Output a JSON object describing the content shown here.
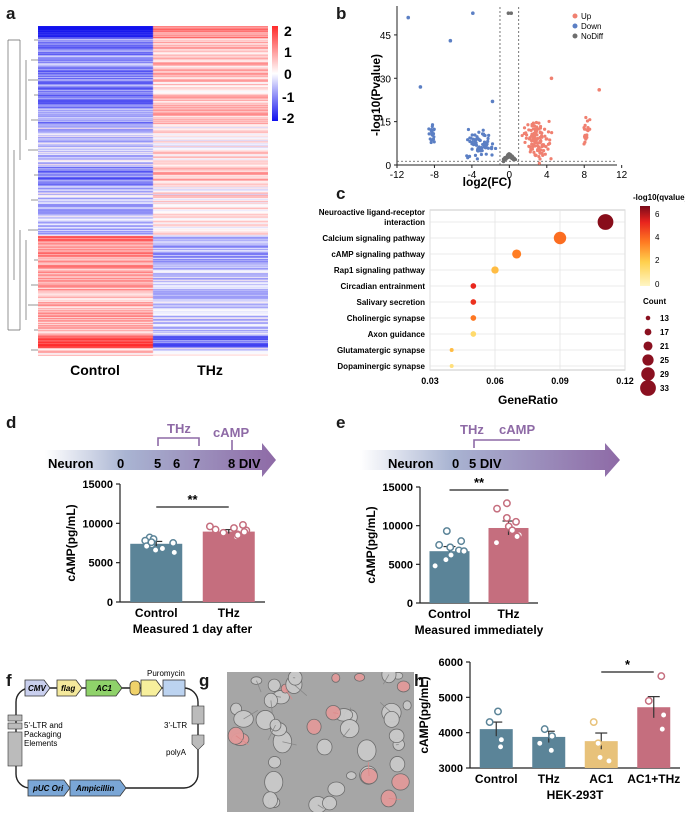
{
  "panel_letters": {
    "a": "a",
    "b": "b",
    "c": "c",
    "d": "d",
    "e": "e",
    "f": "f",
    "g": "g",
    "h": "h"
  },
  "heatmap": {
    "columns": [
      "Control",
      "THz"
    ],
    "colorbar": {
      "ticks": [
        "2",
        "1",
        "0",
        "-1",
        "-2"
      ],
      "colors": {
        "high": "#ff2a2a",
        "mid": "#ffffff",
        "low": "#1010ee"
      }
    }
  },
  "chart_data": [
    {
      "panel": "b",
      "type": "scatter",
      "title": "",
      "xlabel": "log2(FC)",
      "ylabel": "-log10(Pvalue)",
      "xlim": [
        -12,
        11.5
      ],
      "ylim": [
        0,
        55
      ],
      "xticks": [
        "-12",
        "-8",
        "-4",
        "0",
        "4",
        "8",
        "12"
      ],
      "yticks": [
        "0",
        "15",
        "30",
        "45"
      ],
      "legend": [
        {
          "name": "Up",
          "color": "#f08070"
        },
        {
          "name": "Down",
          "color": "#5b7fc4"
        },
        {
          "name": "NoDiff",
          "color": "#6e6e6e"
        }
      ],
      "threshold_lines": {
        "x": [
          -1,
          1
        ],
        "y": 1.3
      },
      "outliers": [
        {
          "group": "Down",
          "x": -10.8,
          "y": 51
        },
        {
          "group": "Down",
          "x": -3.9,
          "y": 52.5
        },
        {
          "group": "NoDiff",
          "x": -0.1,
          "y": 52.5
        },
        {
          "group": "NoDiff",
          "x": 0.2,
          "y": 52.5
        },
        {
          "group": "Down",
          "x": -6.3,
          "y": 43
        },
        {
          "group": "Down",
          "x": -9.5,
          "y": 27
        },
        {
          "group": "Up",
          "x": 9.6,
          "y": 26
        },
        {
          "group": "Up",
          "x": 4.5,
          "y": 30
        },
        {
          "group": "Down",
          "x": -1.8,
          "y": 22
        }
      ],
      "clusters": [
        {
          "group": "Down",
          "cx": -8.3,
          "cy": 11,
          "spread_x": 0.5,
          "spread_y": 5,
          "n": 18
        },
        {
          "group": "Down",
          "cx": -3.0,
          "cy": 7,
          "spread_x": 1.6,
          "spread_y": 6,
          "n": 70
        },
        {
          "group": "Up",
          "cx": 3.0,
          "cy": 8,
          "spread_x": 1.8,
          "spread_y": 8,
          "n": 110
        },
        {
          "group": "Up",
          "cx": 8.3,
          "cy": 12,
          "spread_x": 0.5,
          "spread_y": 6,
          "n": 18
        },
        {
          "group": "NoDiff",
          "cx": 0,
          "cy": 2,
          "spread_x": 0.8,
          "spread_y": 2.5,
          "n": 90
        }
      ]
    },
    {
      "panel": "c",
      "type": "scatter",
      "xlabel": "GeneRatio",
      "xlim": [
        0.03,
        0.12
      ],
      "xticks": [
        "0.03",
        "0.06",
        "0.09",
        "0.12"
      ],
      "categories": [
        "Neuroactive ligand-receptor interaction",
        "Calcium signaling pathway",
        "cAMP signaling pathway",
        "Rap1 signaling pathway",
        "Circadian entrainment",
        "Salivary secretion",
        "Cholinergic synapse",
        "Axon guidance",
        "Glutamatergic synapse",
        "Dopaminergic synapse"
      ],
      "category_lines": [
        [
          "Neuroactive ligand-receptor",
          "interaction"
        ],
        [
          "Calcium signaling pathway"
        ],
        [
          "cAMP signaling pathway"
        ],
        [
          "Rap1 signaling pathway"
        ],
        [
          "Circadian entrainment"
        ],
        [
          "Salivary secretion"
        ],
        [
          "Cholinergic synapse"
        ],
        [
          "Axon guidance"
        ],
        [
          "Glutamatergic synapse"
        ],
        [
          "Dopaminergic synapse"
        ]
      ],
      "gene_ratio": [
        0.111,
        0.09,
        0.07,
        0.06,
        0.05,
        0.05,
        0.05,
        0.05,
        0.04,
        0.04
      ],
      "count": [
        33,
        27,
        21,
        18,
        15,
        15,
        15,
        15,
        12,
        12
      ],
      "neg_log10_qvalue": [
        6.3,
        3.5,
        3.2,
        2.0,
        4.8,
        4.6,
        3.3,
        1.2,
        2.0,
        1.0
      ],
      "color_legend": {
        "title": "-log10(qvalue)",
        "ticks": [
          "6",
          "4",
          "2",
          "0"
        ],
        "min": 0,
        "max": 6.5,
        "colors": [
          "#fff6c4",
          "#ffd04d",
          "#ff7a22",
          "#e8231e",
          "#7a0a1a"
        ]
      },
      "size_legend": {
        "title": "Count",
        "values": [
          "13",
          "17",
          "21",
          "25",
          "29",
          "33"
        ]
      }
    },
    {
      "panel": "d",
      "type": "bar",
      "categories": [
        "Control",
        "THz"
      ],
      "values": [
        7400,
        8950
      ],
      "errors": [
        300,
        250
      ],
      "colors": [
        "#5b8498",
        "#c56e7e"
      ],
      "ylabel": "cAMP(pg/mL)",
      "ylim": [
        0,
        15000
      ],
      "yticks": [
        "0",
        "5000",
        "10000",
        "15000"
      ],
      "significance": "**",
      "xlabel": "Measured 1 day after",
      "points": [
        [
          8200,
          7800,
          7500,
          7300,
          6800,
          7100,
          6300,
          8000,
          7600,
          6600
        ],
        [
          9100,
          8600,
          8800,
          9400,
          8300,
          9600,
          8900,
          8500,
          9800,
          9200
        ]
      ],
      "timeline": {
        "start_label": "Neuron",
        "ticks": [
          "0",
          "5",
          "6",
          "7",
          "8 DIV"
        ],
        "bracket_label": "THz",
        "marker_label": "cAMP"
      }
    },
    {
      "panel": "e",
      "type": "bar",
      "categories": [
        "Control",
        "THz"
      ],
      "values": [
        6700,
        9700
      ],
      "errors": [
        600,
        900
      ],
      "colors": [
        "#5b8498",
        "#c56e7e"
      ],
      "ylabel": "cAMP(pg/mL)",
      "ylim": [
        0,
        15000
      ],
      "yticks": [
        "0",
        "5000",
        "10000",
        "15000"
      ],
      "significance": "**",
      "xlabel": "Measured immediately",
      "points": [
        [
          9300,
          8000,
          7200,
          6800,
          6200,
          5600,
          4800,
          7500,
          6700
        ],
        [
          12900,
          12200,
          10500,
          9900,
          8800,
          7800,
          9400,
          8600,
          11000
        ]
      ],
      "timeline": {
        "start_label": "Neuron",
        "ticks": [
          "0",
          "5 DIV"
        ],
        "bracket_label": "THz",
        "marker_label": "cAMP"
      }
    },
    {
      "panel": "h",
      "type": "bar",
      "categories": [
        "Control",
        "THz",
        "AC1",
        "AC1+THz"
      ],
      "values": [
        4100,
        3880,
        3760,
        4720
      ],
      "errors": [
        200,
        160,
        230,
        300
      ],
      "colors": [
        "#5b8498",
        "#5b8498",
        "#e8c27a",
        "#c56e7e"
      ],
      "ylabel": "cAMP(pg/mL)",
      "ylim": [
        3000,
        6000
      ],
      "yticks": [
        "3000",
        "4000",
        "5000",
        "6000"
      ],
      "significance": "*",
      "xlabel": "HEK-293T",
      "points": [
        [
          4600,
          4300,
          3800,
          3600
        ],
        [
          4100,
          3900,
          3700,
          3500
        ],
        [
          4300,
          3700,
          3300,
          3200
        ],
        [
          5600,
          4900,
          4500,
          4100
        ]
      ]
    }
  ],
  "plasmid": {
    "cmv": "CMV",
    "flag": "flag",
    "ac1": "AC1",
    "puromycin": "Puromycin",
    "ltr5_line1": "5'-LTR and",
    "ltr5_line2": "Packaging",
    "ltr5_line3": "Elements",
    "ltr3": "3'-LTR",
    "polya": "polyA",
    "puc_ori": "pUC Ori",
    "ampicillin": "Ampicillin"
  }
}
